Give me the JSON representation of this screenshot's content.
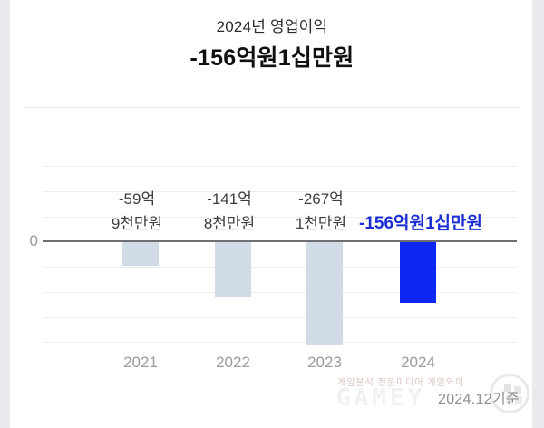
{
  "header": {
    "title": "2024년 영업이익",
    "subtitle": "-156억원1십만원"
  },
  "chart_data": {
    "type": "bar",
    "title": "2024년 영업이익",
    "subtitle_total": "-156억원1십만원",
    "unit": "억원",
    "categories": [
      "2021",
      "2022",
      "2023",
      "2024"
    ],
    "values": [
      -59.9,
      -141.8,
      -267.1,
      -156.001
    ],
    "bars": [
      {
        "year": "2021",
        "value": -59.9,
        "label_lines": [
          "-59억",
          "9천만원"
        ],
        "highlight": false
      },
      {
        "year": "2022",
        "value": -141.8,
        "label_lines": [
          "-141억",
          "8천만원"
        ],
        "highlight": false
      },
      {
        "year": "2023",
        "value": -267.1,
        "label_lines": [
          "-267억",
          "1천만원"
        ],
        "highlight": false
      },
      {
        "year": "2024",
        "value": -156.001,
        "label_lines": [
          "-156억원1십만원"
        ],
        "highlight": true
      }
    ],
    "axis": {
      "zero_label": "0"
    },
    "grid": true,
    "legend": false,
    "ylim": [
      -290,
      85
    ],
    "colors": {
      "bar": "#d2dce6",
      "bar_highlight": "#0d26f2",
      "value_label": "#3d3d40",
      "value_label_highlight": "#1a2ed6",
      "zero_line": "#6f6f73",
      "gridline": "#efefef"
    }
  },
  "footer": {
    "as_of": "2024.12기준",
    "watermark_text": "게임분석 전문미디어 게임와이",
    "watermark_logo": "GAMEY"
  }
}
